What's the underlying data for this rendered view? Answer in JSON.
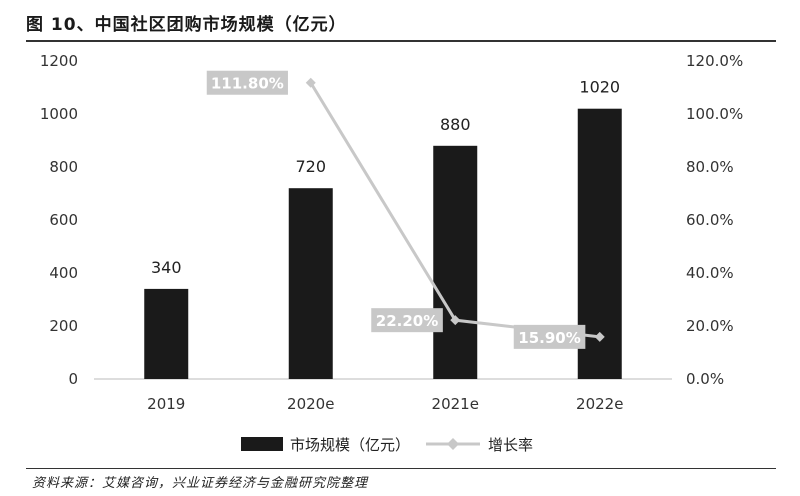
{
  "figure": {
    "title": "图 10、中国社区团购市场规模（亿元）",
    "source": "资料来源：艾媒咨询，兴业证券经济与金融研究院整理"
  },
  "chart_data": {
    "type": "bar",
    "categories": [
      "2019",
      "2020e",
      "2021e",
      "2022e"
    ],
    "series": [
      {
        "name": "市场规模（亿元）",
        "type": "bar",
        "axis": "left",
        "values": [
          340,
          720,
          880,
          1020
        ],
        "labels": [
          "340",
          "720",
          "880",
          "1020"
        ],
        "color": "#1a1a1a"
      },
      {
        "name": "增长率",
        "type": "line",
        "axis": "right",
        "values": [
          null,
          111.8,
          22.2,
          15.9
        ],
        "labels": [
          "",
          "111.80%",
          "22.20%",
          "15.90%"
        ],
        "color": "#c8c8c8"
      }
    ],
    "y_left": {
      "min": 0,
      "max": 1200,
      "ticks": [
        "0",
        "200",
        "400",
        "600",
        "800",
        "1000",
        "1200"
      ]
    },
    "y_right": {
      "min": 0,
      "max": 120,
      "ticks": [
        "0.0%",
        "20.0%",
        "40.0%",
        "60.0%",
        "80.0%",
        "100.0%",
        "120.0%"
      ]
    },
    "grid": false,
    "legend_position": "bottom"
  }
}
